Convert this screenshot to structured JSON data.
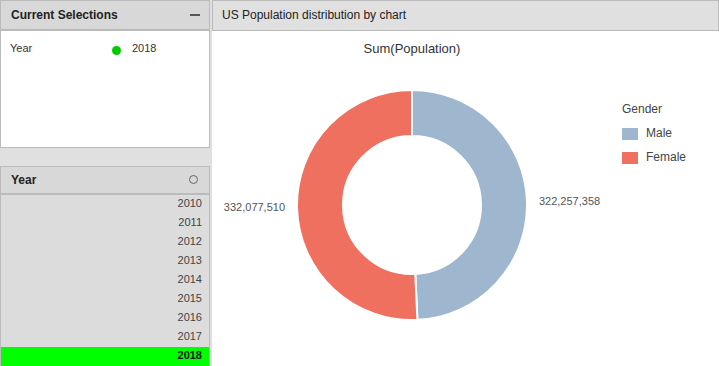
{
  "page": {
    "title_left": "Current Selections",
    "filter_label": "Year",
    "filter_value": "2018",
    "list_title": "Year",
    "years": [
      "2010",
      "2011",
      "2012",
      "2013",
      "2014",
      "2015",
      "2016",
      "2017",
      "2018"
    ],
    "selected_year": "2018",
    "chart_panel_title": "US Population distribution by chart"
  },
  "chart_data": {
    "type": "pie",
    "title": "Sum(Population)",
    "legend_title": "Gender",
    "categories": [
      "Male",
      "Female"
    ],
    "values": [
      322257358,
      332077510
    ],
    "value_labels": [
      "322,257,358",
      "332,077,510"
    ],
    "colors": [
      "#9eb6ce",
      "#f07060"
    ],
    "data_labels": true,
    "legend": "right"
  }
}
